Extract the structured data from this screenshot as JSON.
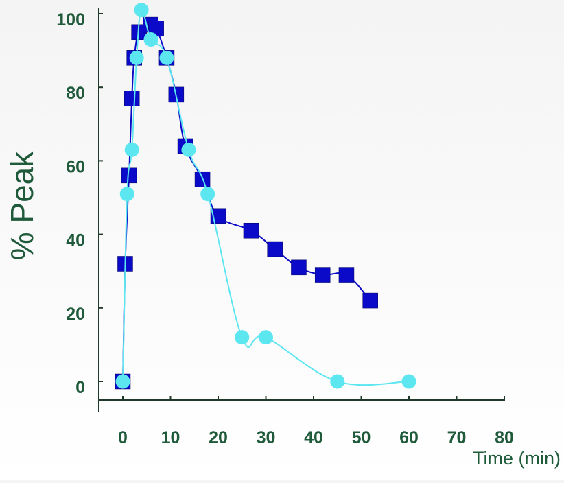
{
  "chart_data": {
    "type": "line",
    "title": "",
    "xlabel": "Time (min)",
    "ylabel": "% Peak",
    "xlim": [
      0,
      80
    ],
    "ylim": [
      0,
      100
    ],
    "x_ticks": [
      0,
      10,
      20,
      30,
      40,
      50,
      60,
      70,
      80
    ],
    "y_ticks": [
      0,
      20,
      40,
      60,
      80,
      100
    ],
    "grid": false,
    "legend": "none",
    "series": [
      {
        "color": "#0a0ac8",
        "marker": "square",
        "points": [
          [
            0,
            0
          ],
          [
            0.5,
            32
          ],
          [
            1.3,
            56
          ],
          [
            1.9,
            77
          ],
          [
            2.4,
            88
          ],
          [
            3.4,
            95
          ],
          [
            5.8,
            97
          ],
          [
            7,
            96
          ],
          [
            9.2,
            88
          ],
          [
            11.2,
            78
          ],
          [
            13.1,
            64
          ],
          [
            16.7,
            55
          ],
          [
            20,
            45
          ],
          [
            26.9,
            41
          ],
          [
            31.9,
            36
          ],
          [
            36.9,
            31
          ],
          [
            41.9,
            29
          ],
          [
            46.9,
            29
          ],
          [
            51.9,
            22
          ]
        ]
      },
      {
        "color": "#5ce6f0",
        "marker": "circle",
        "points": [
          [
            0,
            0
          ],
          [
            0.9,
            51
          ],
          [
            1.9,
            63
          ],
          [
            2.9,
            88
          ],
          [
            3.9,
            101
          ],
          [
            5.9,
            93
          ],
          [
            9.2,
            88
          ],
          [
            13.8,
            63
          ],
          [
            17.8,
            51
          ],
          [
            25,
            12
          ],
          [
            30,
            12
          ],
          [
            45,
            0
          ],
          [
            60,
            0
          ]
        ]
      }
    ]
  }
}
